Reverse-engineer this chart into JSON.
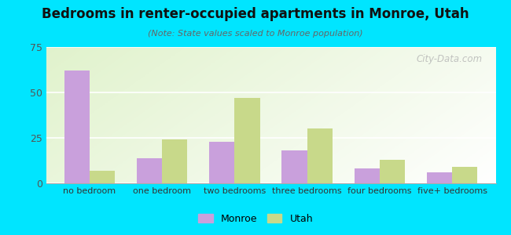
{
  "title": "Bedrooms in renter-occupied apartments in Monroe, Utah",
  "subtitle": "(Note: State values scaled to Monroe population)",
  "categories": [
    "no bedroom",
    "one bedroom",
    "two bedrooms",
    "three bedrooms",
    "four bedrooms",
    "five+ bedrooms"
  ],
  "monroe_values": [
    62,
    14,
    23,
    18,
    8,
    6
  ],
  "utah_values": [
    7,
    24,
    47,
    30,
    13,
    9
  ],
  "monroe_color": "#c9a0dc",
  "utah_color": "#c8d98a",
  "background_outer": "#00e5ff",
  "ylim": [
    0,
    75
  ],
  "yticks": [
    0,
    25,
    50,
    75
  ],
  "bar_width": 0.35,
  "legend_monroe": "Monroe",
  "legend_utah": "Utah",
  "watermark": "City-Data.com"
}
